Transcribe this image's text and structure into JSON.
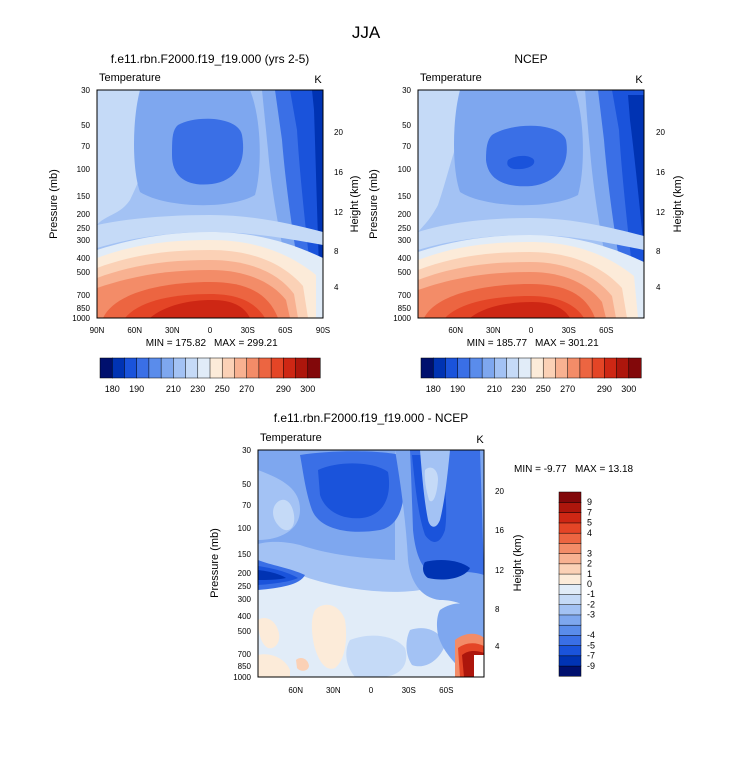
{
  "figure_title": "JJA",
  "chart_data": [
    {
      "type": "heatmap",
      "id": "model",
      "title": "f.e11.rbn.F2000.f19_f19.000 (yrs 2-5)",
      "left_label": "Temperature",
      "right_label": "K",
      "ylabel": "Pressure (mb)",
      "y2label": "Height (km)",
      "x_tick_labels": [
        "90N",
        "60N",
        "30N",
        "0",
        "30S",
        "60S",
        "90S"
      ],
      "x_tick_values": [
        90,
        60,
        30,
        0,
        -30,
        -60,
        -90
      ],
      "xlim": [
        90,
        -90
      ],
      "y_tick_labels": [
        "30",
        "50",
        "70",
        "100",
        "150",
        "200",
        "250",
        "300",
        "400",
        "500",
        "700",
        "850",
        "1000"
      ],
      "y_tick_values": [
        30,
        50,
        70,
        100,
        150,
        200,
        250,
        300,
        400,
        500,
        700,
        850,
        1000
      ],
      "ylim": [
        1000,
        30
      ],
      "y2_tick_labels": [
        "4",
        "8",
        "12",
        "16",
        "20"
      ],
      "y2_tick_values": [
        4,
        8,
        12,
        16,
        20
      ],
      "min_label": "MIN = 175.82",
      "max_label": "MAX = 299.21",
      "min": 175.82,
      "max": 299.21
    },
    {
      "type": "heatmap",
      "id": "ncep",
      "title": "NCEP",
      "left_label": "Temperature",
      "right_label": "K",
      "ylabel": "Pressure (mb)",
      "y2label": "Height (km)",
      "x_tick_labels": [
        "60N",
        "30N",
        "0",
        "30S",
        "60S"
      ],
      "x_tick_values": [
        60,
        30,
        0,
        -30,
        -60
      ],
      "xlim": [
        90,
        -90
      ],
      "y_tick_labels": [
        "30",
        "50",
        "70",
        "100",
        "150",
        "200",
        "250",
        "300",
        "400",
        "500",
        "700",
        "850",
        "1000"
      ],
      "y_tick_values": [
        30,
        50,
        70,
        100,
        150,
        200,
        250,
        300,
        400,
        500,
        700,
        850,
        1000
      ],
      "ylim": [
        1000,
        30
      ],
      "y2_tick_labels": [
        "4",
        "8",
        "12",
        "16",
        "20"
      ],
      "y2_tick_values": [
        4,
        8,
        12,
        16,
        20
      ],
      "min_label": "MIN = 185.77",
      "max_label": "MAX = 301.21",
      "min": 185.77,
      "max": 301.21
    },
    {
      "type": "heatmap",
      "id": "diff",
      "title": "f.e11.rbn.F2000.f19_f19.000 - NCEP",
      "left_label": "Temperature",
      "right_label": "K",
      "ylabel": "Pressure (mb)",
      "y2label": "Height (km)",
      "x_tick_labels": [
        "60N",
        "30N",
        "0",
        "30S",
        "60S"
      ],
      "x_tick_values": [
        60,
        30,
        0,
        -30,
        -60
      ],
      "xlim": [
        90,
        -90
      ],
      "y_tick_labels": [
        "30",
        "50",
        "70",
        "100",
        "150",
        "200",
        "250",
        "300",
        "400",
        "500",
        "700",
        "850",
        "1000"
      ],
      "y_tick_values": [
        30,
        50,
        70,
        100,
        150,
        200,
        250,
        300,
        400,
        500,
        700,
        850,
        1000
      ],
      "ylim": [
        1000,
        30
      ],
      "y2_tick_labels": [
        "4",
        "8",
        "12",
        "16",
        "20"
      ],
      "y2_tick_values": [
        4,
        8,
        12,
        16,
        20
      ],
      "min_label": "MIN =  -9.77",
      "max_label": "MAX =  13.18",
      "min": -9.77,
      "max": 13.18
    }
  ],
  "colorbars": {
    "absolute": {
      "colors": [
        "#00106e",
        "#0033b3",
        "#1a53db",
        "#3a6fe6",
        "#5a8ceb",
        "#7ea7ef",
        "#a3c2f4",
        "#c5daf7",
        "#e1ecf8",
        "#fcebd9",
        "#fbd1b6",
        "#f8b191",
        "#f38c68",
        "#ec6541",
        "#e44526",
        "#ce2714",
        "#ad160c",
        "#82080a"
      ],
      "labels": [
        "180",
        "190",
        "210",
        "230",
        "250",
        "270",
        "290",
        "300"
      ]
    },
    "difference": {
      "colors": [
        "#00106e",
        "#0033b3",
        "#1a53db",
        "#3a6fe6",
        "#5a8ceb",
        "#7ea7ef",
        "#a3c2f4",
        "#c5daf7",
        "#e1ecf8",
        "#fcebd9",
        "#fbd1b6",
        "#f8b191",
        "#f38c68",
        "#ec6541",
        "#e44526",
        "#ce2714",
        "#ad160c",
        "#82080a"
      ],
      "labels": [
        "-9",
        "-7",
        "-5",
        "-4",
        "-3",
        "-2",
        "-1",
        "0",
        "1",
        "2",
        "3",
        "4",
        "5",
        "7",
        "9"
      ]
    }
  }
}
